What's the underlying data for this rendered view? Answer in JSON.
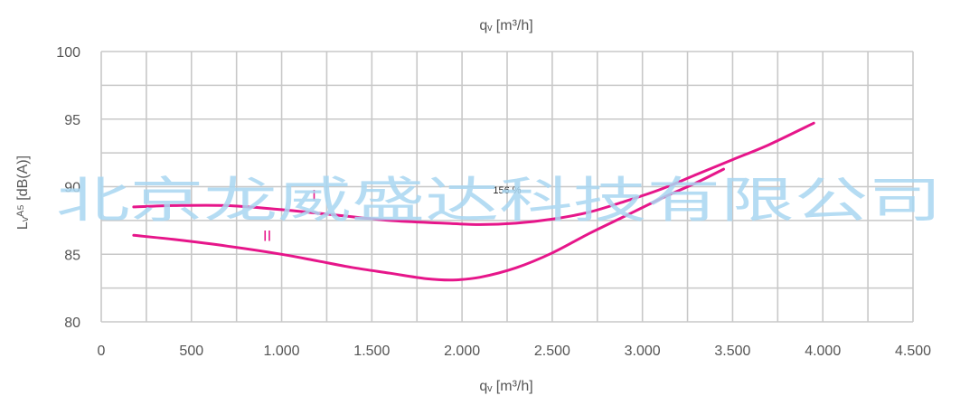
{
  "chart_data": {
    "type": "line",
    "top_axis_label": "qᵥ [m³/h]",
    "xlabel": "qᵥ [m³/h]",
    "ylabel": "Lᵥᴬ⁵ [dB(A)]",
    "xlim": [
      0,
      4500
    ],
    "ylim": [
      80,
      100
    ],
    "x_ticks": [
      0,
      500,
      1000,
      1500,
      2000,
      2500,
      3000,
      3500,
      4000,
      4500
    ],
    "x_tick_labels": [
      "0",
      "500",
      "1.000",
      "1.500",
      "2.000",
      "2.500",
      "3.000",
      "3.500",
      "4.000",
      "4.500"
    ],
    "y_ticks": [
      80,
      85,
      90,
      95,
      100
    ],
    "y_tick_labels": [
      "80",
      "85",
      "90",
      "95",
      "100"
    ],
    "grid": true,
    "series": [
      {
        "name": "I",
        "color": "#e6168a",
        "x": [
          180,
          400,
          700,
          1000,
          1300,
          1600,
          1900,
          2100,
          2300,
          2500,
          2700,
          2900,
          3100,
          3300,
          3500,
          3700,
          3950
        ],
        "y": [
          88.5,
          88.6,
          88.6,
          88.3,
          87.9,
          87.5,
          87.3,
          87.2,
          87.3,
          87.6,
          88.1,
          88.9,
          89.8,
          90.9,
          92.0,
          93.1,
          94.7
        ]
      },
      {
        "name": "II",
        "color": "#e6168a",
        "x": [
          180,
          400,
          700,
          1000,
          1200,
          1400,
          1600,
          1800,
          1950,
          2100,
          2300,
          2500,
          2700,
          2900,
          3100,
          3300,
          3450
        ],
        "y": [
          86.4,
          86.1,
          85.6,
          85.0,
          84.5,
          84.0,
          83.6,
          83.2,
          83.1,
          83.3,
          84.0,
          85.1,
          86.5,
          87.8,
          89.1,
          90.3,
          91.3
        ]
      }
    ],
    "series_labels": [
      {
        "text": "I",
        "x": 1180,
        "y": 89.0
      },
      {
        "text": "II",
        "x": 920,
        "y": 86.0
      }
    ],
    "annotation": {
      "text": "156 %",
      "x": 2250,
      "y": 89.5
    }
  },
  "watermark": "北京龙威盛达科技有限公司"
}
